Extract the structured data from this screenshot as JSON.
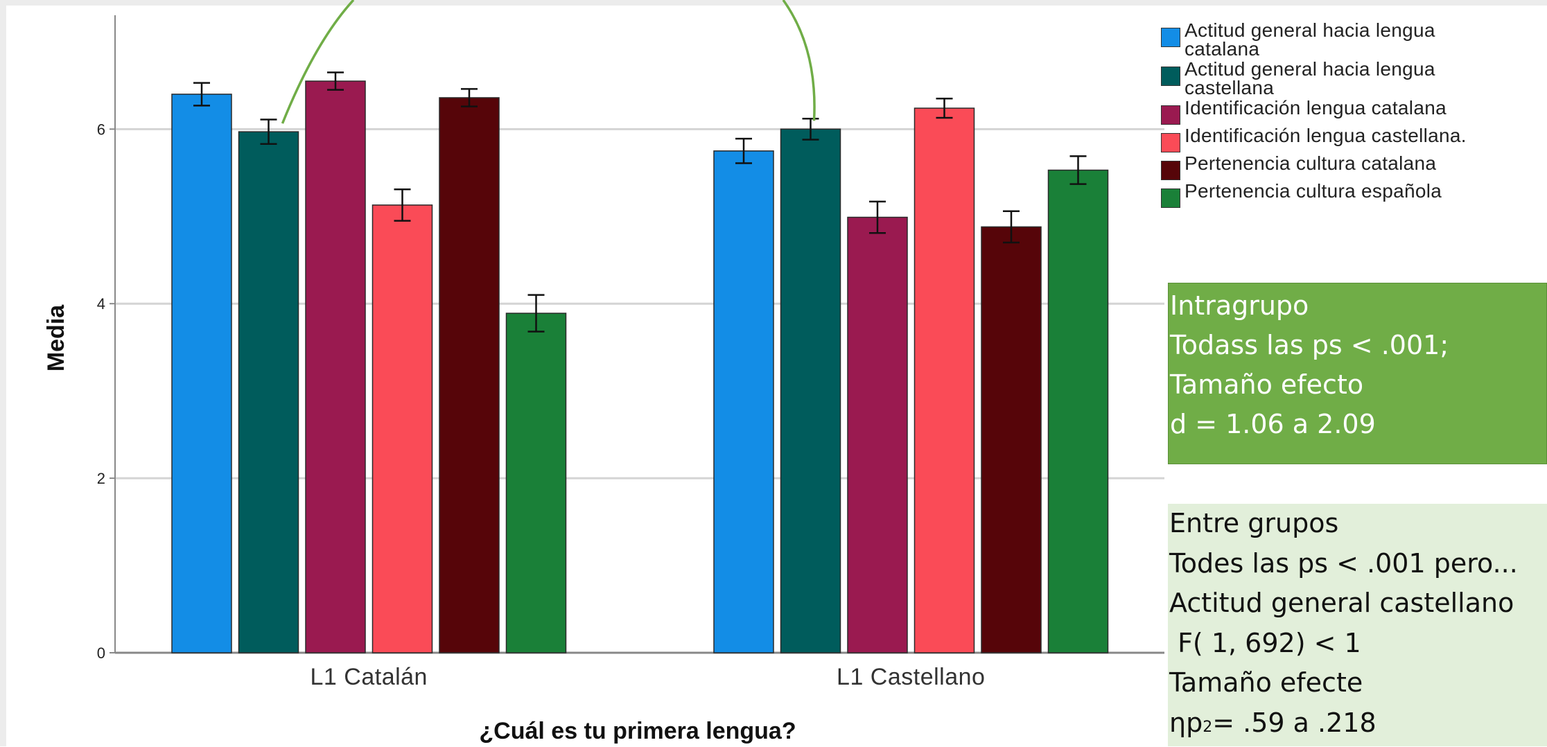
{
  "chart_data": {
    "type": "bar",
    "categories": [
      "L1 Catalán",
      "L1 Castellano"
    ],
    "series": [
      {
        "name": "Actitud general hacia lengua catalana",
        "color": "#138de6",
        "values": [
          6.4,
          5.75
        ],
        "err": [
          0.13,
          0.14
        ]
      },
      {
        "name": "Actitud general hacia lengua castellana",
        "color": "#005c5c",
        "values": [
          5.97,
          6.0
        ],
        "err": [
          0.14,
          0.12
        ]
      },
      {
        "name": "Identificación lengua catalana",
        "color": "#9a1a50",
        "values": [
          6.55,
          4.99
        ],
        "err": [
          0.1,
          0.18
        ]
      },
      {
        "name": "Identificación lengua castellana.",
        "color": "#fa4b57",
        "values": [
          5.13,
          6.24
        ],
        "err": [
          0.18,
          0.11
        ]
      },
      {
        "name": "Pertenencia cultura catalana",
        "color": "#560509",
        "values": [
          6.36,
          4.88
        ],
        "err": [
          0.1,
          0.18
        ]
      },
      {
        "name": "Pertenencia cultura española",
        "color": "#1a8038",
        "values": [
          3.89,
          5.53
        ],
        "err": [
          0.21,
          0.16
        ]
      }
    ],
    "xlabel": "¿Cuál es tu primera lengua?",
    "ylabel": "Media",
    "ylim": [
      0,
      7.4
    ],
    "yticks": [
      0,
      2,
      4,
      6
    ],
    "grid": true,
    "legend": "top-right"
  },
  "legend_items": [
    {
      "line1": "Actitud general hacia lengua",
      "line2": "catalana",
      "color": "#138de6"
    },
    {
      "line1": "Actitud general hacia lengua",
      "line2": "castellana",
      "color": "#005c5c"
    },
    {
      "line1": "Identificación lengua catalana",
      "line2": "",
      "color": "#9a1a50"
    },
    {
      "line1": "Identificación lengua castellana.",
      "line2": "",
      "color": "#fa4b57"
    },
    {
      "line1": "Pertenencia cultura catalana",
      "line2": "",
      "color": "#560509"
    },
    {
      "line1": "Pertenencia cultura española",
      "line2": "",
      "color": "#1a8038"
    }
  ],
  "intragrupo": {
    "l1": "Intragrupo",
    "l2": "Todass las ps < .001;",
    "l3": "Tamaño efecto",
    "l4": "d = 1.06 a 2.09"
  },
  "entregrupos": {
    "l1": "Entre grupos",
    "l2": "Todes las ps < .001 pero...",
    "l3": "Actitud general castellano",
    "l4": " F( 1, 692) < 1",
    "l5": "Tamaño efecte",
    "l6_a": "ηp",
    "l6_sub": "2",
    "l6_b": "= .59 a .218"
  },
  "annotation_arrow_color": "#70ad47"
}
